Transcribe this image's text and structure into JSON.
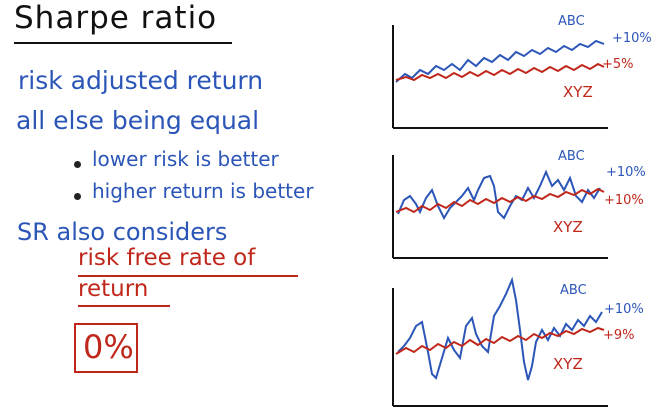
{
  "slide": {
    "title": "Sharpe ratio",
    "line1": "risk adjusted return",
    "line2": "all else being equal",
    "bullets": [
      "lower risk is better",
      "higher return is better"
    ],
    "line3": "SR also considers",
    "line4": "risk free rate of",
    "line5": "return",
    "boxed_value": "0%"
  },
  "colors": {
    "ink": "#111111",
    "blue": "#2b56b8",
    "red": "#c0271b"
  },
  "panels": [
    {
      "top_label": "ABC",
      "top_return": "+10%",
      "bottom_label": "XYZ",
      "bottom_return": "+5%"
    },
    {
      "top_label": "ABC",
      "top_return": "+10%",
      "bottom_label": "XYZ",
      "bottom_return": "+10%"
    },
    {
      "top_label": "ABC",
      "top_return": "+10%",
      "bottom_label": "XYZ",
      "bottom_return": "+9%"
    }
  ]
}
